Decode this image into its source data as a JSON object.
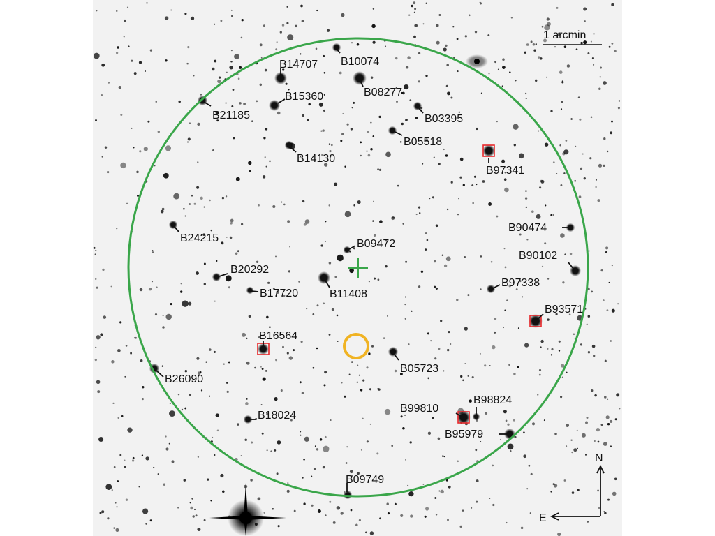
{
  "colors": {
    "field_circle": "#3aa64a",
    "center_cross": "#3aa64a",
    "target_circle": "#f0b323",
    "marker_box": "#e8282b",
    "star": "#111111",
    "background": "#f2f2f2"
  },
  "scale_bar": {
    "label": "1 arcmin"
  },
  "compass": {
    "north": "N",
    "east": "E"
  },
  "labels": [
    {
      "id": "B14707",
      "text": "B14707"
    },
    {
      "id": "B10074",
      "text": "B10074"
    },
    {
      "id": "B08277",
      "text": "B08277"
    },
    {
      "id": "B15360",
      "text": "B15360"
    },
    {
      "id": "B21185",
      "text": "B21185"
    },
    {
      "id": "B03395",
      "text": "B03395"
    },
    {
      "id": "B05518",
      "text": "B05518"
    },
    {
      "id": "B14130",
      "text": "B14130"
    },
    {
      "id": "B97341",
      "text": "B97341"
    },
    {
      "id": "B24215",
      "text": "B24215"
    },
    {
      "id": "B90474",
      "text": "B90474"
    },
    {
      "id": "B09472",
      "text": "B09472"
    },
    {
      "id": "B90102",
      "text": "B90102"
    },
    {
      "id": "B20292",
      "text": "B20292"
    },
    {
      "id": "B97338",
      "text": "B97338"
    },
    {
      "id": "B17720",
      "text": "B17720"
    },
    {
      "id": "B11408",
      "text": "B11408"
    },
    {
      "id": "B93571",
      "text": "B93571"
    },
    {
      "id": "B16564",
      "text": "B16564"
    },
    {
      "id": "B05723",
      "text": "B05723"
    },
    {
      "id": "B26090",
      "text": "B26090"
    },
    {
      "id": "B98824",
      "text": "B98824"
    },
    {
      "id": "B99810",
      "text": "B99810"
    },
    {
      "id": "B18024",
      "text": "B18024"
    },
    {
      "id": "B95979",
      "text": "B95979"
    },
    {
      "id": "B09749",
      "text": "B09749"
    }
  ]
}
